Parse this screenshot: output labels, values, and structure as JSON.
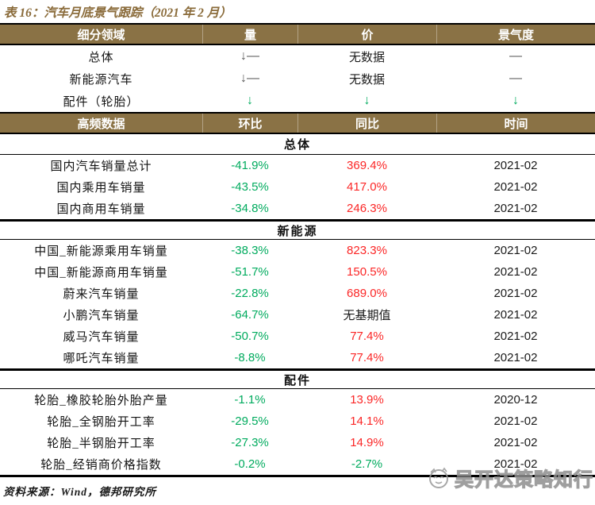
{
  "title": "表 16：汽车月底景气跟踪（2021 年 2 月）",
  "colors": {
    "header_bg": "#8a7245",
    "title_text": "#8a6b3a",
    "green": "#00ab5e",
    "red": "#fb2626",
    "dark": "#595959",
    "black": "#1a1a1a"
  },
  "overview": {
    "headers": [
      "细分领域",
      "量",
      "价",
      "景气度"
    ],
    "rows": [
      {
        "cells": [
          {
            "t": "总体",
            "c": "label"
          },
          {
            "t": "↓—",
            "c": "dark"
          },
          {
            "t": "无数据",
            "c": "black"
          },
          {
            "t": "—",
            "c": "dark"
          }
        ]
      },
      {
        "cells": [
          {
            "t": "新能源汽车",
            "c": "label"
          },
          {
            "t": "↓—",
            "c": "dark"
          },
          {
            "t": "无数据",
            "c": "black"
          },
          {
            "t": "—",
            "c": "dark"
          }
        ]
      },
      {
        "cells": [
          {
            "t": "配件（轮胎）",
            "c": "label"
          },
          {
            "t": "↓",
            "c": "green"
          },
          {
            "t": "↓",
            "c": "green"
          },
          {
            "t": "↓",
            "c": "green"
          }
        ]
      }
    ]
  },
  "highfreq": {
    "headers": [
      "高频数据",
      "环比",
      "同比",
      "时间"
    ],
    "sections": [
      {
        "name": "总体",
        "rows": [
          [
            {
              "t": "国内汽车销量总计",
              "c": "label"
            },
            {
              "t": "-41.9%",
              "c": "green"
            },
            {
              "t": "369.4%",
              "c": "red"
            },
            {
              "t": "2021-02",
              "c": "black"
            }
          ],
          [
            {
              "t": "国内乘用车销量",
              "c": "label"
            },
            {
              "t": "-43.5%",
              "c": "green"
            },
            {
              "t": "417.0%",
              "c": "red"
            },
            {
              "t": "2021-02",
              "c": "black"
            }
          ],
          [
            {
              "t": "国内商用车销量",
              "c": "label"
            },
            {
              "t": "-34.8%",
              "c": "green"
            },
            {
              "t": "246.3%",
              "c": "red"
            },
            {
              "t": "2021-02",
              "c": "black"
            }
          ]
        ]
      },
      {
        "name": "新能源",
        "rows": [
          [
            {
              "t": "中国_新能源乘用车销量",
              "c": "label"
            },
            {
              "t": "-38.3%",
              "c": "green"
            },
            {
              "t": "823.3%",
              "c": "red"
            },
            {
              "t": "2021-02",
              "c": "black"
            }
          ],
          [
            {
              "t": "中国_新能源商用车销量",
              "c": "label"
            },
            {
              "t": "-51.7%",
              "c": "green"
            },
            {
              "t": "150.5%",
              "c": "red"
            },
            {
              "t": "2021-02",
              "c": "black"
            }
          ],
          [
            {
              "t": "蔚来汽车销量",
              "c": "label"
            },
            {
              "t": "-22.8%",
              "c": "green"
            },
            {
              "t": "689.0%",
              "c": "red"
            },
            {
              "t": "2021-02",
              "c": "black"
            }
          ],
          [
            {
              "t": "小鹏汽车销量",
              "c": "label"
            },
            {
              "t": "-64.7%",
              "c": "green"
            },
            {
              "t": "无基期值",
              "c": "black"
            },
            {
              "t": "2021-02",
              "c": "black"
            }
          ],
          [
            {
              "t": "威马汽车销量",
              "c": "label"
            },
            {
              "t": "-50.7%",
              "c": "green"
            },
            {
              "t": "77.4%",
              "c": "red"
            },
            {
              "t": "2021-02",
              "c": "black"
            }
          ],
          [
            {
              "t": "哪吒汽车销量",
              "c": "label"
            },
            {
              "t": "-8.8%",
              "c": "green"
            },
            {
              "t": "77.4%",
              "c": "red"
            },
            {
              "t": "2021-02",
              "c": "black"
            }
          ]
        ]
      },
      {
        "name": "配件",
        "rows": [
          [
            {
              "t": "轮胎_橡胶轮胎外胎产量",
              "c": "label"
            },
            {
              "t": "-1.1%",
              "c": "green"
            },
            {
              "t": "13.9%",
              "c": "red"
            },
            {
              "t": "2020-12",
              "c": "black"
            }
          ],
          [
            {
              "t": "轮胎_全钢胎开工率",
              "c": "label"
            },
            {
              "t": "-29.5%",
              "c": "green"
            },
            {
              "t": "14.1%",
              "c": "red"
            },
            {
              "t": "2021-02",
              "c": "black"
            }
          ],
          [
            {
              "t": "轮胎_半钢胎开工率",
              "c": "label"
            },
            {
              "t": "-27.3%",
              "c": "green"
            },
            {
              "t": "14.9%",
              "c": "red"
            },
            {
              "t": "2021-02",
              "c": "black"
            }
          ],
          [
            {
              "t": "轮胎_经销商价格指数",
              "c": "label"
            },
            {
              "t": "-0.2%",
              "c": "green"
            },
            {
              "t": "-2.7%",
              "c": "green"
            },
            {
              "t": "2021-02",
              "c": "black"
            }
          ]
        ]
      }
    ]
  },
  "footer": "资料来源：Wind，德邦研究所",
  "watermark": {
    "text": "吴开达策略知行",
    "logo": "smiley-face-icon"
  }
}
